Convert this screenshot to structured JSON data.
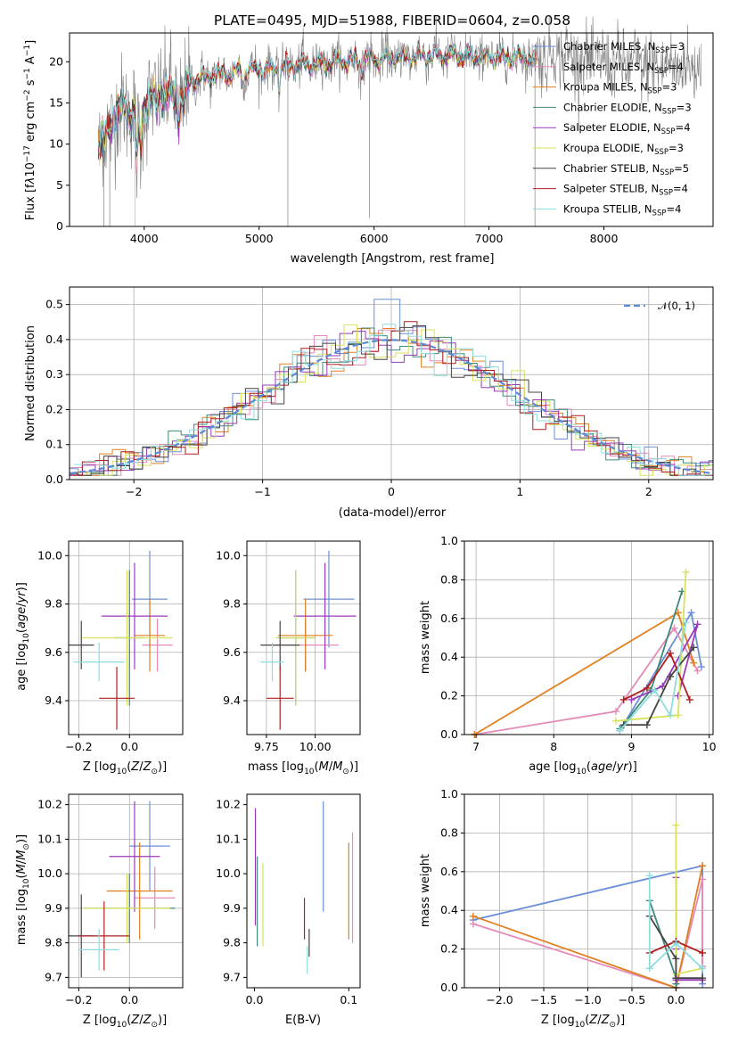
{
  "chart_data": [
    {
      "id": "spectrum",
      "type": "line",
      "title": "PLATE=0495, MJD=51988, FIBERID=0604, z=0.058",
      "xlabel": "wavelength [Angstrom, rest frame]",
      "ylabel": "Flux [f$_\\lambda$10$^{-17}$ erg cm$^{-2}$ s$^{-1}$ A$^{-1}$]",
      "xlim": [
        3350,
        8950
      ],
      "ylim": [
        0,
        23.5
      ],
      "xticks": [
        4000,
        5000,
        6000,
        7000,
        8000
      ],
      "yticks": [
        0,
        5,
        10,
        15,
        20
      ],
      "grid": false,
      "legend_position": "right",
      "legend": [
        {
          "label": "Chabrier MILES, N",
          "sub": "SSP",
          "n": "=3",
          "color": "#6a8fd8"
        },
        {
          "label": "Salpeter MILES, N",
          "sub": "SSP",
          "n": "=4",
          "color": "#e48bb8"
        },
        {
          "label": "Kroupa MILES, N",
          "sub": "SSP",
          "n": "=3",
          "color": "#e2801f"
        },
        {
          "label": "Chabrier ELODIE, N",
          "sub": "SSP",
          "n": "=3",
          "color": "#3d8a7a"
        },
        {
          "label": "Salpeter ELODIE, N",
          "sub": "SSP",
          "n": "=4",
          "color": "#9a3ab8"
        },
        {
          "label": "Kroupa ELODIE, N",
          "sub": "SSP",
          "n": "=3",
          "color": "#d7e25a"
        },
        {
          "label": "Chabrier STELIB, N",
          "sub": "SSP",
          "n": "=5",
          "color": "#444444"
        },
        {
          "label": "Salpeter STELIB, N",
          "sub": "SSP",
          "n": "=4",
          "color": "#b01e1e"
        },
        {
          "label": "Kroupa STELIB, N",
          "sub": "SSP",
          "n": "=4",
          "color": "#8fdcde"
        }
      ],
      "continuum": [
        [
          3600,
          9.5
        ],
        [
          3680,
          11.5
        ],
        [
          3750,
          13.5
        ],
        [
          3820,
          14.5
        ],
        [
          3900,
          14.0
        ],
        [
          3950,
          12.0
        ],
        [
          4000,
          14.5
        ],
        [
          4100,
          16.0
        ],
        [
          4200,
          16.5
        ],
        [
          4300,
          15.5
        ],
        [
          4400,
          17.5
        ],
        [
          4500,
          18.0
        ],
        [
          4700,
          18.5
        ],
        [
          4900,
          19.0
        ],
        [
          5100,
          19.2
        ],
        [
          5300,
          19.5
        ],
        [
          5500,
          19.8
        ],
        [
          5700,
          20.0
        ],
        [
          5900,
          20.2
        ],
        [
          6100,
          20.4
        ],
        [
          6300,
          20.6
        ],
        [
          6500,
          20.8
        ],
        [
          6700,
          20.7
        ],
        [
          6900,
          20.6
        ],
        [
          7100,
          20.5
        ],
        [
          7300,
          20.6
        ],
        [
          7400,
          20.3
        ],
        [
          7600,
          21.0
        ],
        [
          7800,
          20.4
        ],
        [
          8000,
          20.0
        ],
        [
          8200,
          19.8
        ],
        [
          8500,
          19.5
        ],
        [
          8800,
          19.5
        ]
      ],
      "data_color": "#808080",
      "model_color": "#8fdcde"
    },
    {
      "id": "residuals",
      "type": "histogram",
      "xlabel": "(data-model)/error",
      "ylabel": "Normed distribution",
      "xlim": [
        -2.5,
        2.5
      ],
      "ylim": [
        0,
        0.55
      ],
      "xticks": [
        -2,
        -1,
        0,
        1,
        2
      ],
      "yticks": [
        0.0,
        0.1,
        0.2,
        0.3,
        0.4,
        0.5
      ],
      "grid": true,
      "bin_width": 0.1,
      "legend": {
        "label": "𝒩(0, 1)",
        "color": "#5b8ad6"
      }
    },
    {
      "id": "Z-age",
      "type": "errorbar",
      "xlabel": "Z [log$_{10}$(Z/Z$_\\odot$)]",
      "ylabel": "age  [log$_{10}$(age/yr)]",
      "xlim": [
        -0.24,
        0.21
      ],
      "ylim": [
        9.26,
        10.06
      ],
      "xticks": [
        -0.2,
        0.0
      ],
      "yticks": [
        9.4,
        9.6,
        9.8,
        10.0
      ],
      "grid": true,
      "points": [
        {
          "x": 0.08,
          "y": 9.82,
          "xerr": 0.07,
          "yerr": 0.2,
          "color": "#6a8fd8"
        },
        {
          "x": 0.11,
          "y": 9.63,
          "xerr": 0.06,
          "yerr": 0.11,
          "color": "#e48bb8"
        },
        {
          "x": 0.08,
          "y": 9.67,
          "xerr": 0.06,
          "yerr": 0.15,
          "color": "#e2801f"
        },
        {
          "x": 0.0,
          "y": 9.66,
          "xerr": 0.06,
          "yerr": 0.28,
          "color": "#3d8a7a"
        },
        {
          "x": 0.02,
          "y": 9.75,
          "xerr": 0.13,
          "yerr": 0.22,
          "color": "#9a3ab8"
        },
        {
          "x": -0.01,
          "y": 9.66,
          "xerr": 0.18,
          "yerr": 0.28,
          "color": "#d7e25a"
        },
        {
          "x": -0.19,
          "y": 9.63,
          "xerr": 0.05,
          "yerr": 0.1,
          "color": "#444444"
        },
        {
          "x": -0.05,
          "y": 9.41,
          "xerr": 0.07,
          "yerr": 0.13,
          "color": "#b01e1e"
        },
        {
          "x": -0.12,
          "y": 9.56,
          "xerr": 0.1,
          "yerr": 0.08,
          "color": "#8fdcde"
        }
      ]
    },
    {
      "id": "mass-age",
      "type": "errorbar",
      "xlabel": "mass [log$_{10}$(M/M$_\\odot$)]",
      "ylabel": "",
      "xlim": [
        9.65,
        10.23
      ],
      "ylim": [
        9.26,
        10.06
      ],
      "xticks": [
        9.75,
        10.0
      ],
      "yticks": [
        9.4,
        9.6,
        9.8,
        10.0
      ],
      "grid": true,
      "points": [
        {
          "x": 10.07,
          "y": 9.82,
          "xerr": 0.13,
          "yerr": 0.2,
          "color": "#6a8fd8"
        },
        {
          "x": 9.95,
          "y": 9.63,
          "xerr": 0.17,
          "yerr": 0.11,
          "color": "#e48bb8"
        },
        {
          "x": 9.95,
          "y": 9.67,
          "xerr": 0.14,
          "yerr": 0.15,
          "color": "#e2801f"
        },
        {
          "x": 9.9,
          "y": 9.66,
          "xerr": 0.1,
          "yerr": 0.28,
          "color": "#3d8a7a"
        },
        {
          "x": 10.05,
          "y": 9.75,
          "xerr": 0.16,
          "yerr": 0.22,
          "color": "#9a3ab8"
        },
        {
          "x": 9.9,
          "y": 9.66,
          "xerr": 0.1,
          "yerr": 0.28,
          "color": "#d7e25a"
        },
        {
          "x": 9.82,
          "y": 9.63,
          "xerr": 0.1,
          "yerr": 0.1,
          "color": "#444444"
        },
        {
          "x": 9.82,
          "y": 9.41,
          "xerr": 0.07,
          "yerr": 0.13,
          "color": "#b01e1e"
        },
        {
          "x": 9.78,
          "y": 9.56,
          "xerr": 0.06,
          "yerr": 0.08,
          "color": "#8fdcde"
        }
      ]
    },
    {
      "id": "age-weight",
      "type": "line",
      "xlabel": "age  [log$_{10}$(age/yr)]",
      "ylabel": "mass weight",
      "xlim": [
        6.85,
        10.05
      ],
      "ylim": [
        0,
        1.0
      ],
      "xticks": [
        7,
        8,
        9,
        10
      ],
      "yticks": [
        0.0,
        0.2,
        0.4,
        0.6,
        0.8,
        1.0
      ],
      "grid": true,
      "series": [
        {
          "color": "#6a8fd8",
          "points": [
            [
              8.85,
              0.02
            ],
            [
              9.77,
              0.63
            ],
            [
              9.9,
              0.35
            ]
          ]
        },
        {
          "color": "#e48bb8",
          "points": [
            [
              6.98,
              0.0
            ],
            [
              8.8,
              0.12
            ],
            [
              9.55,
              0.55
            ],
            [
              9.85,
              0.33
            ]
          ]
        },
        {
          "color": "#e2801f",
          "points": [
            [
              6.98,
              0.0
            ],
            [
              9.6,
              0.63
            ],
            [
              9.8,
              0.37
            ]
          ]
        },
        {
          "color": "#3d8a7a",
          "points": [
            [
              8.85,
              0.03
            ],
            [
              9.25,
              0.23
            ],
            [
              9.65,
              0.74
            ]
          ]
        },
        {
          "color": "#9a3ab8",
          "points": [
            [
              9.0,
              0.18
            ],
            [
              9.4,
              0.25
            ],
            [
              9.85,
              0.57
            ],
            [
              9.6,
              0.2
            ]
          ]
        },
        {
          "color": "#d7e25a",
          "points": [
            [
              8.8,
              0.07
            ],
            [
              9.6,
              0.1
            ],
            [
              9.7,
              0.84
            ]
          ]
        },
        {
          "color": "#444444",
          "points": [
            [
              8.9,
              0.05
            ],
            [
              9.2,
              0.05
            ],
            [
              9.5,
              0.3
            ],
            [
              9.8,
              0.45
            ]
          ]
        },
        {
          "color": "#b01e1e",
          "points": [
            [
              8.9,
              0.18
            ],
            [
              9.2,
              0.24
            ],
            [
              9.5,
              0.42
            ],
            [
              9.75,
              0.18
            ]
          ]
        },
        {
          "color": "#8fdcde",
          "points": [
            [
              8.85,
              0.02
            ],
            [
              9.3,
              0.23
            ],
            [
              9.5,
              0.1
            ],
            [
              9.7,
              0.58
            ]
          ]
        }
      ]
    },
    {
      "id": "Z-mass",
      "type": "errorbar",
      "xlabel": "Z [log$_{10}$(Z/Z$_\\odot$)]",
      "ylabel": "mass [log$_{10}$(M/M$_\\odot$)]",
      "xlim": [
        -0.24,
        0.21
      ],
      "ylim": [
        9.67,
        10.23
      ],
      "xticks": [
        -0.2,
        0.0
      ],
      "yticks": [
        9.7,
        9.8,
        9.9,
        10.0,
        10.1,
        10.2
      ],
      "grid": true,
      "points": [
        {
          "x": 0.08,
          "y": 10.08,
          "xerr": 0.08,
          "yerr": 0.13,
          "color": "#6a8fd8"
        },
        {
          "x": 0.1,
          "y": 9.93,
          "xerr": 0.08,
          "yerr": 0.09,
          "color": "#e48bb8"
        },
        {
          "x": 0.04,
          "y": 9.95,
          "xerr": 0.13,
          "yerr": 0.14,
          "color": "#e2801f"
        },
        {
          "x": 0.0,
          "y": 9.9,
          "xerr": 0.18,
          "yerr": 0.1,
          "color": "#3d8a7a"
        },
        {
          "x": 0.02,
          "y": 10.05,
          "xerr": 0.1,
          "yerr": 0.16,
          "color": "#9a3ab8"
        },
        {
          "x": -0.01,
          "y": 9.9,
          "xerr": 0.17,
          "yerr": 0.1,
          "color": "#d7e25a"
        },
        {
          "x": -0.19,
          "y": 9.82,
          "xerr": 0.05,
          "yerr": 0.12,
          "color": "#444444"
        },
        {
          "x": -0.1,
          "y": 9.82,
          "xerr": 0.1,
          "yerr": 0.1,
          "color": "#b01e1e"
        },
        {
          "x": -0.12,
          "y": 9.78,
          "xerr": 0.08,
          "yerr": 0.06,
          "color": "#8fdcde"
        }
      ]
    },
    {
      "id": "ebv-mass",
      "type": "errorbar",
      "xlabel": "E(B-V)",
      "ylabel": "",
      "xlim": [
        -0.008,
        0.112
      ],
      "ylim": [
        9.67,
        10.23
      ],
      "xticks": [
        0.0,
        0.1
      ],
      "yticks": [
        9.7,
        9.8,
        9.9,
        10.0,
        10.1,
        10.2
      ],
      "grid": false,
      "points": [
        {
          "x": 0.073,
          "y": 10.05,
          "xerr": 0,
          "yerr": 0.16,
          "color": "#6a8fd8"
        },
        {
          "x": 0.104,
          "y": 9.96,
          "xerr": 0,
          "yerr": 0.16,
          "color": "#e48bb8"
        },
        {
          "x": 0.1,
          "y": 9.95,
          "xerr": 0,
          "yerr": 0.14,
          "color": "#e2801f"
        },
        {
          "x": 0.003,
          "y": 9.92,
          "xerr": 0,
          "yerr": 0.13,
          "color": "#3d8a7a"
        },
        {
          "x": 0.001,
          "y": 10.02,
          "xerr": 0,
          "yerr": 0.17,
          "color": "#9a3ab8"
        },
        {
          "x": 0.009,
          "y": 9.91,
          "xerr": 0,
          "yerr": 0.12,
          "color": "#d7e25a"
        },
        {
          "x": 0.058,
          "y": 9.8,
          "xerr": 0,
          "yerr": 0.04,
          "color": "#444444"
        },
        {
          "x": 0.053,
          "y": 9.87,
          "xerr": 0,
          "yerr": 0.06,
          "color": "#b01e1e"
        },
        {
          "x": 0.056,
          "y": 9.75,
          "xerr": 0,
          "yerr": 0.04,
          "color": "#8fdcde"
        }
      ]
    },
    {
      "id": "Z-weight",
      "type": "line",
      "xlabel": "Z [log$_{10}$(Z/Z$_\\odot$)]",
      "ylabel": "mass weight",
      "xlim": [
        -2.4,
        0.42
      ],
      "ylim": [
        0,
        1.0
      ],
      "xticks": [
        -2.0,
        -1.5,
        -1.0,
        -0.5,
        0.0
      ],
      "yticks": [
        0.0,
        0.2,
        0.4,
        0.6,
        0.8,
        1.0
      ],
      "grid": true,
      "series": [
        {
          "color": "#6a8fd8",
          "points": [
            [
              -2.3,
              0.35
            ],
            [
              0.3,
              0.63
            ],
            [
              0.3,
              0.02
            ]
          ]
        },
        {
          "color": "#e48bb8",
          "points": [
            [
              -2.3,
              0.33
            ],
            [
              0.0,
              0.0
            ],
            [
              0.3,
              0.56
            ],
            [
              0.3,
              0.11
            ]
          ]
        },
        {
          "color": "#e2801f",
          "points": [
            [
              -2.3,
              0.37
            ],
            [
              0.0,
              0.0
            ],
            [
              0.3,
              0.63
            ]
          ]
        },
        {
          "color": "#3d8a7a",
          "points": [
            [
              -0.3,
              0.45
            ],
            [
              0.0,
              0.05
            ],
            [
              0.0,
              0.02
            ]
          ]
        },
        {
          "color": "#9a3ab8",
          "points": [
            [
              0.0,
              0.57
            ],
            [
              0.0,
              0.2
            ],
            [
              0.0,
              0.04
            ],
            [
              0.3,
              0.04
            ]
          ]
        },
        {
          "color": "#d7e25a",
          "points": [
            [
              0.0,
              0.84
            ],
            [
              0.0,
              0.07
            ],
            [
              0.3,
              0.1
            ]
          ]
        },
        {
          "color": "#444444",
          "points": [
            [
              -0.3,
              0.37
            ],
            [
              0.0,
              0.15
            ],
            [
              0.0,
              0.05
            ],
            [
              0.3,
              0.05
            ]
          ]
        },
        {
          "color": "#b01e1e",
          "points": [
            [
              -0.3,
              0.18
            ],
            [
              0.0,
              0.24
            ],
            [
              0.3,
              0.18
            ]
          ]
        },
        {
          "color": "#8fdcde",
          "points": [
            [
              -0.3,
              0.58
            ],
            [
              -0.3,
              0.1
            ],
            [
              0.0,
              0.23
            ],
            [
              0.3,
              0.1
            ]
          ]
        }
      ]
    }
  ]
}
